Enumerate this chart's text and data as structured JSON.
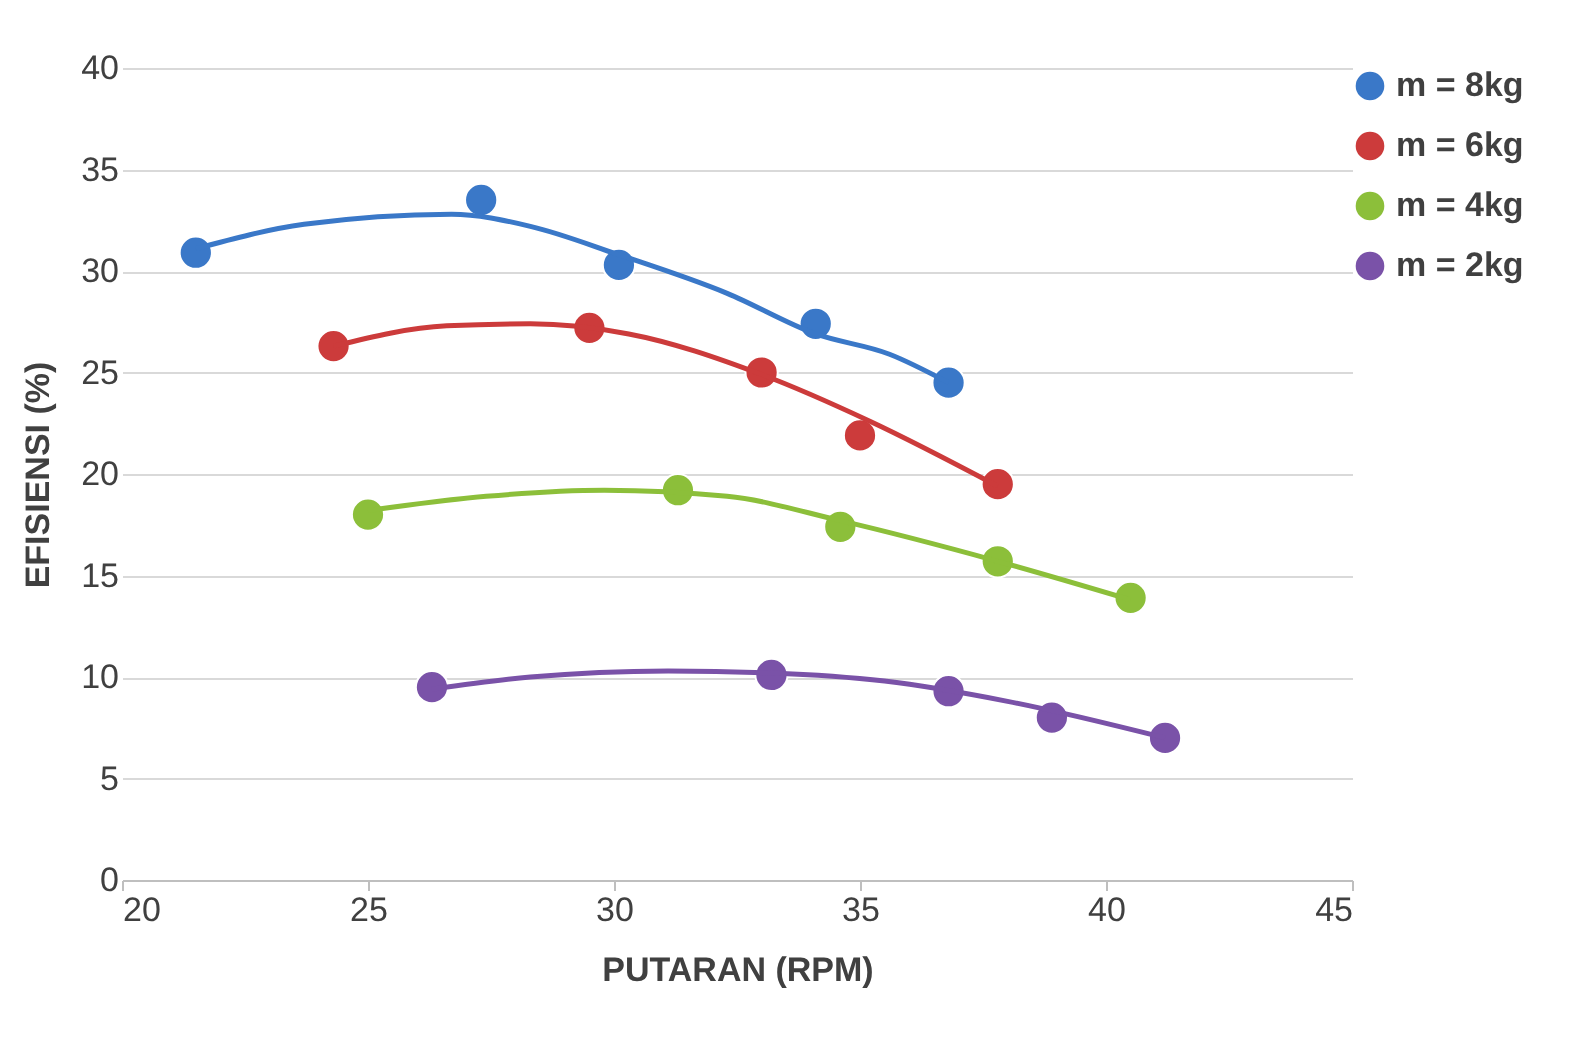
{
  "chart_data": {
    "type": "scatter",
    "xlabel": "PUTARAN (RPM)",
    "ylabel": "EFISIENSI (%)",
    "xlim": [
      20,
      45
    ],
    "xticks": [
      20,
      25,
      30,
      35,
      40,
      45
    ],
    "ylim": [
      0,
      40
    ],
    "yticks": [
      0,
      5,
      10,
      15,
      20,
      25,
      30,
      35,
      40
    ],
    "grid": "y",
    "legend": "right",
    "series": [
      {
        "name": "m = 8kg",
        "marker": "circle",
        "color": "#3a78c8",
        "x": [
          21.5,
          27.3,
          30.1,
          34.1,
          36.8
        ],
        "values": [
          30.9,
          33.5,
          30.3,
          27.4,
          24.5
        ]
      },
      {
        "name": "m = 6kg",
        "marker": "circle",
        "color": "#cc3b3b",
        "x": [
          24.3,
          29.5,
          33.0,
          35.0,
          37.8
        ],
        "values": [
          26.3,
          27.2,
          25.0,
          21.9,
          19.5
        ]
      },
      {
        "name": "m = 4kg",
        "marker": "circle",
        "color": "#8cbf3a",
        "x": [
          25.0,
          31.3,
          34.6,
          37.8,
          40.5
        ],
        "values": [
          18.0,
          19.2,
          17.4,
          15.7,
          13.9
        ]
      },
      {
        "name": "m = 2kg",
        "marker": "circle",
        "color": "#7a52a8",
        "x": [
          26.3,
          33.2,
          36.8,
          38.9,
          41.2
        ],
        "values": [
          9.5,
          10.1,
          9.3,
          8.0,
          7.0
        ]
      },
      {
        "type": "line",
        "marker": "none",
        "line_style": "solid",
        "color": "#3a78c8",
        "x": [
          21.5,
          23.7,
          26.7,
          28.3,
          30.1,
          32.3,
          34.1,
          35.6,
          36.8
        ],
        "values": [
          31.1,
          32.3,
          32.8,
          32.2,
          30.8,
          28.9,
          26.9,
          25.9,
          24.5
        ]
      },
      {
        "type": "line",
        "marker": "none",
        "line_style": "solid",
        "color": "#cc3b3b",
        "x": [
          24.3,
          26.6,
          28.3,
          30.3,
          33.0,
          35.2,
          37.8
        ],
        "values": [
          26.3,
          27.3,
          27.4,
          26.9,
          24.9,
          22.6,
          19.4
        ]
      },
      {
        "type": "line",
        "marker": "none",
        "line_style": "solid",
        "color": "#8cbf3a",
        "x": [
          25.0,
          27.4,
          29.8,
          32.3,
          34.6,
          37.8,
          40.5
        ],
        "values": [
          18.2,
          18.9,
          19.2,
          18.9,
          17.7,
          15.7,
          13.8
        ]
      },
      {
        "type": "line",
        "marker": "none",
        "line_style": "solid",
        "color": "#7a52a8",
        "x": [
          26.3,
          28.3,
          31.1,
          33.2,
          35.5,
          38.0,
          41.2
        ],
        "values": [
          9.4,
          10.0,
          10.3,
          10.2,
          9.8,
          8.8,
          7.0
        ]
      }
    ]
  }
}
